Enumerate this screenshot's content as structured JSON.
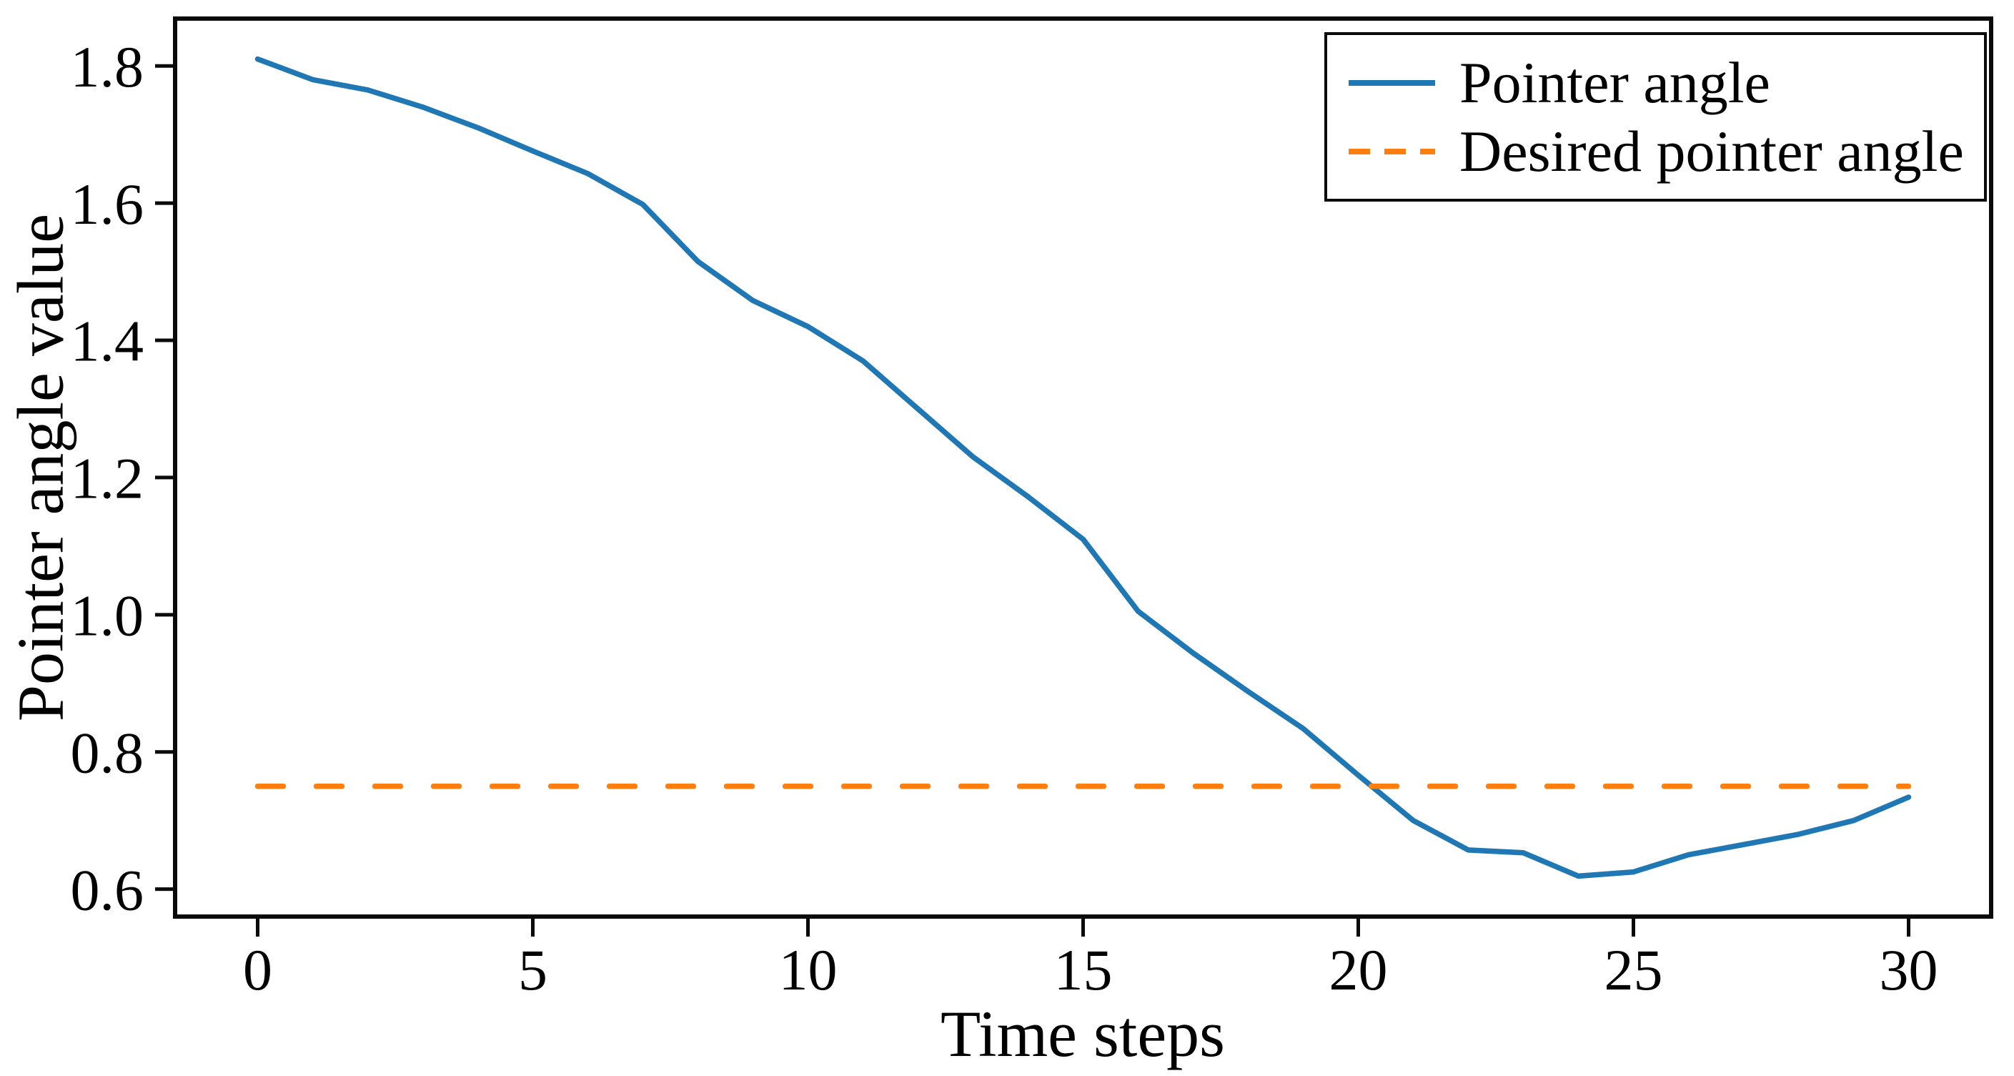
{
  "chart_data": {
    "type": "line",
    "title": "",
    "xlabel": "Time steps",
    "ylabel": "Pointer angle value",
    "x": [
      0,
      1,
      2,
      3,
      4,
      5,
      6,
      7,
      8,
      9,
      10,
      11,
      12,
      13,
      14,
      15,
      16,
      17,
      18,
      19,
      20,
      21,
      22,
      23,
      24,
      25,
      26,
      27,
      28,
      29,
      30
    ],
    "series": [
      {
        "name": "Pointer angle",
        "color": "#1f77b4",
        "line_style": "solid",
        "values": [
          1.81,
          1.78,
          1.765,
          1.74,
          1.71,
          1.676,
          1.643,
          1.598,
          1.515,
          1.458,
          1.42,
          1.37,
          1.3,
          1.23,
          1.172,
          1.11,
          1.005,
          0.944,
          0.888,
          0.834,
          0.766,
          0.7,
          0.657,
          0.653,
          0.619,
          0.625,
          0.65,
          0.665,
          0.68,
          0.7,
          0.734
        ]
      },
      {
        "name": "Desired pointer angle",
        "color": "#ff7f0e",
        "line_style": "dashed",
        "constant_value": 0.75
      }
    ],
    "xlim": [
      -1.5,
      31.5
    ],
    "ylim": [
      0.56,
      1.869
    ],
    "xticks": [
      0,
      5,
      10,
      15,
      20,
      25,
      30
    ],
    "yticks": [
      0.6,
      0.8,
      1.0,
      1.2,
      1.4,
      1.6,
      1.8
    ],
    "grid": false,
    "legend_position": "upper right",
    "axis_color": "#0a0a0a",
    "text_color": "#000000",
    "background": "#ffffff"
  }
}
